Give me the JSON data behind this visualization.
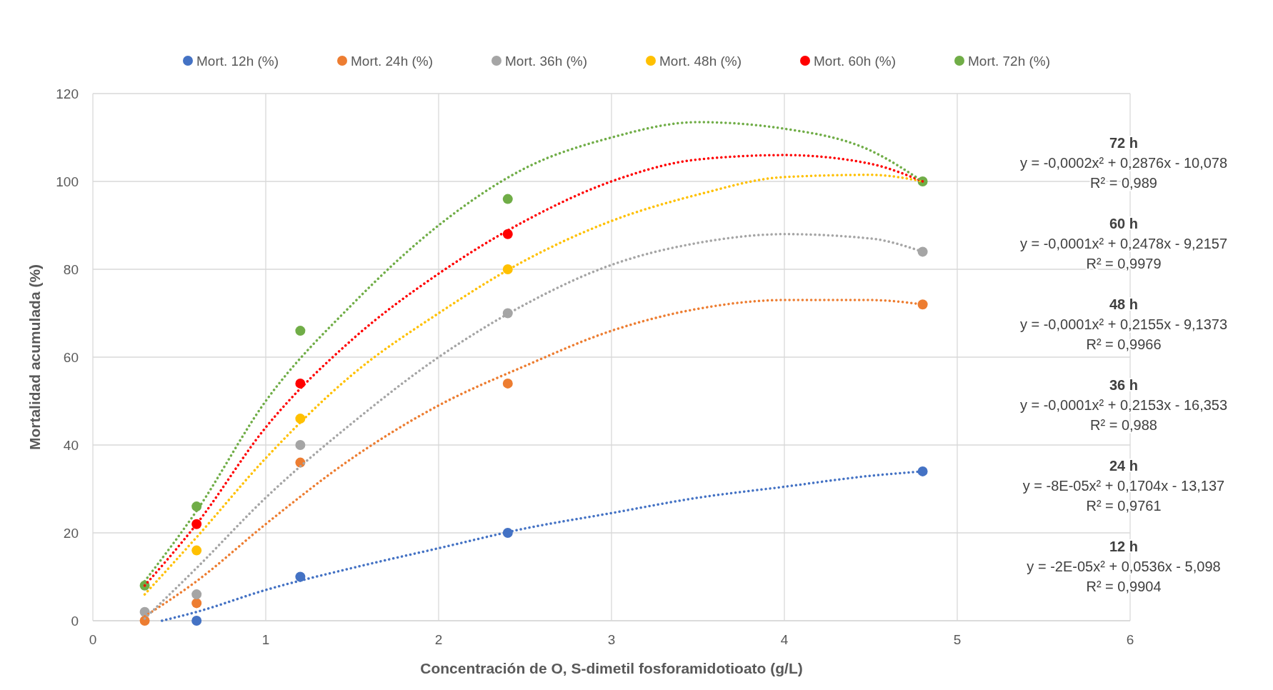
{
  "chart_data": {
    "type": "scatter",
    "xlabel": "Concentración  de O, S-dimetil fosforamidotioato (g/L)",
    "ylabel": "Mortalidad acumulada (%)",
    "xlim": [
      0,
      6
    ],
    "xticks": [
      0,
      1,
      2,
      3,
      4,
      5,
      6
    ],
    "ylim": [
      0,
      120
    ],
    "yticks": [
      0,
      20,
      40,
      60,
      80,
      100,
      120
    ],
    "grid": true,
    "legend": "top",
    "marker": "circle",
    "x": [
      0.3,
      0.6,
      1.2,
      2.4,
      4.8
    ],
    "series": [
      {
        "name": "Mort. 12h (%)",
        "color": "#4472c4",
        "values": [
          null,
          0,
          10,
          20,
          34
        ]
      },
      {
        "name": "Mort. 24h (%)",
        "color": "#ed7d31",
        "values": [
          0,
          4,
          36,
          54,
          72
        ]
      },
      {
        "name": "Mort. 36h (%)",
        "color": "#a5a5a5",
        "values": [
          2,
          6,
          40,
          70,
          84
        ]
      },
      {
        "name": "Mort. 48h (%)",
        "color": "#ffc000",
        "values": [
          null,
          16,
          46,
          80,
          null
        ]
      },
      {
        "name": "Mort. 60h (%)",
        "color": "#ff0000",
        "values": [
          null,
          22,
          54,
          88,
          null
        ]
      },
      {
        "name": "Mort. 72h (%)",
        "color": "#70ad47",
        "values": [
          8,
          26,
          66,
          96,
          100
        ]
      },
      {
        "type": "line",
        "line_style": "dotted",
        "marker": "none",
        "color": "#4472c4",
        "x": [
          0.4,
          0.6,
          1,
          1.5,
          2,
          2.5,
          3,
          3.5,
          4,
          4.5,
          4.8
        ],
        "values": [
          0,
          2,
          7,
          12,
          16.5,
          21,
          24.5,
          28,
          30.5,
          33,
          34
        ]
      },
      {
        "type": "line",
        "line_style": "dotted",
        "marker": "none",
        "color": "#ed7d31",
        "x": [
          0.3,
          0.6,
          1,
          1.5,
          2,
          2.5,
          3,
          3.5,
          4,
          4.5,
          4.8
        ],
        "values": [
          1,
          9,
          22,
          37,
          49,
          58,
          66,
          71,
          73,
          73,
          72
        ]
      },
      {
        "type": "line",
        "line_style": "dotted",
        "marker": "none",
        "color": "#a5a5a5",
        "x": [
          0.3,
          0.6,
          1,
          1.5,
          2,
          2.5,
          3,
          3.5,
          4,
          4.5,
          4.8
        ],
        "values": [
          0.5,
          12,
          28,
          45,
          60,
          72,
          81,
          86,
          88,
          87,
          84
        ]
      },
      {
        "type": "line",
        "line_style": "dotted",
        "marker": "none",
        "color": "#ffc000",
        "x": [
          0.3,
          0.6,
          1,
          1.5,
          2,
          2.5,
          3,
          3.5,
          4,
          4.5,
          4.8
        ],
        "values": [
          6,
          19,
          37,
          56,
          70,
          82,
          91,
          97,
          101,
          101.5,
          100
        ]
      },
      {
        "type": "line",
        "line_style": "dotted",
        "marker": "none",
        "color": "#ff0000",
        "x": [
          0.3,
          0.6,
          1,
          1.5,
          2,
          2.5,
          3,
          3.5,
          4,
          4.5,
          4.8
        ],
        "values": [
          8,
          22,
          44,
          64,
          79,
          91,
          100,
          105,
          106,
          104,
          100
        ]
      },
      {
        "type": "line",
        "line_style": "dotted",
        "marker": "none",
        "color": "#70ad47",
        "x": [
          0.3,
          0.6,
          1,
          1.5,
          2,
          2.5,
          3,
          3.5,
          4,
          4.5,
          4.8
        ],
        "values": [
          9,
          25,
          50,
          72,
          90,
          103,
          110,
          113.5,
          112,
          107,
          100
        ]
      }
    ],
    "annotations": [
      "72 h",
      "y = -0,0002x² + 0,2876x - 10,078",
      "R² = 0,989",
      "60 h",
      "y = -0,0001x² + 0,2478x - 9,2157",
      "R² = 0,9979",
      "48 h",
      "y = -0,0001x² + 0,2155x - 9,1373",
      "R² = 0,9966",
      "36 h",
      "y = -0,0001x² + 0,2153x - 16,353",
      "R² = 0,988",
      "24 h",
      "y = -8E-05x² + 0,1704x - 13,137",
      "R² = 0,9761",
      "12 h",
      "y = -2E-05x² + 0,0536x - 5,098",
      "R² = 0,9904"
    ]
  }
}
